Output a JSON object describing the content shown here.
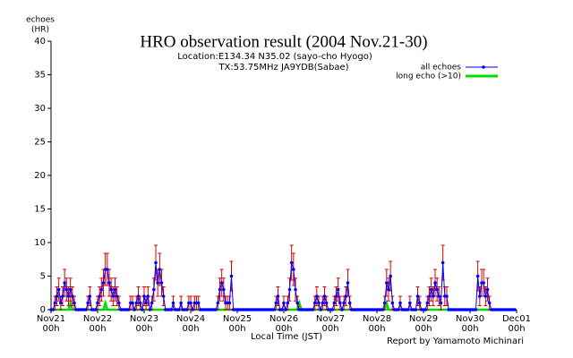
{
  "chart_data": {
    "type": "line",
    "title": "HRO observation result (2004 Nov.21-30)",
    "subtitle": [
      "Location:E134.34 N35.02 (sayo-cho Hyogo)",
      "TX:53.75MHz JA9YDB(Sabae)"
    ],
    "y_label": [
      "echoes",
      "(HR)"
    ],
    "x_label": "Local Time (JST)",
    "annotation": "Report by Yamamoto Michinari",
    "legend": "upper right",
    "xlim": [
      0,
      240
    ],
    "xticks": [
      {
        "value": 0,
        "label": "Nov21\n00h"
      },
      {
        "value": 24,
        "label": "Nov22\n00h"
      },
      {
        "value": 48,
        "label": "Nov23\n00h"
      },
      {
        "value": 72,
        "label": "Nov24\n00h"
      },
      {
        "value": 96,
        "label": "Nov25\n00h"
      },
      {
        "value": 120,
        "label": "Nov26\n00h"
      },
      {
        "value": 144,
        "label": "Nov27\n00h"
      },
      {
        "value": 168,
        "label": "Nov28\n00h"
      },
      {
        "value": 192,
        "label": "Nov29\n00h"
      },
      {
        "value": 216,
        "label": "Nov30\n00h"
      },
      {
        "value": 240,
        "label": "Dec01\n00h"
      }
    ],
    "ylim": [
      0,
      40
    ],
    "yticks": [
      0,
      5,
      10,
      15,
      20,
      25,
      30,
      35,
      40
    ],
    "x": [
      0,
      1,
      2,
      3,
      4,
      5,
      6,
      7,
      8,
      9,
      10,
      11,
      12,
      13,
      14,
      15,
      16,
      17,
      18,
      19,
      20,
      21,
      22,
      23,
      24,
      25,
      26,
      27,
      28,
      29,
      30,
      31,
      32,
      33,
      34,
      35,
      36,
      37,
      38,
      39,
      40,
      41,
      42,
      43,
      44,
      45,
      46,
      47,
      48,
      49,
      50,
      51,
      52,
      53,
      54,
      55,
      56,
      57,
      58,
      59,
      60,
      61,
      62,
      63,
      64,
      65,
      66,
      67,
      68,
      69,
      70,
      71,
      72,
      73,
      74,
      75,
      76,
      77,
      78,
      79,
      80,
      81,
      82,
      83,
      84,
      85,
      86,
      87,
      88,
      89,
      90,
      91,
      92,
      93,
      94,
      95,
      96,
      97,
      98,
      99,
      100,
      101,
      102,
      103,
      104,
      105,
      106,
      107,
      108,
      109,
      110,
      111,
      112,
      113,
      114,
      115,
      116,
      117,
      118,
      119,
      120,
      121,
      122,
      123,
      124,
      125,
      126,
      127,
      128,
      129,
      130,
      131,
      132,
      133,
      134,
      135,
      136,
      137,
      138,
      139,
      140,
      141,
      142,
      143,
      144,
      145,
      146,
      147,
      148,
      149,
      150,
      151,
      152,
      153,
      154,
      155,
      156,
      157,
      158,
      159,
      160,
      161,
      162,
      163,
      164,
      165,
      166,
      167,
      168,
      169,
      170,
      171,
      172,
      173,
      174,
      175,
      176,
      177,
      178,
      179,
      180,
      181,
      182,
      183,
      184,
      185,
      186,
      187,
      188,
      189,
      190,
      191,
      192,
      193,
      194,
      195,
      196,
      197,
      198,
      199,
      200,
      201,
      202,
      203,
      204,
      205,
      206,
      207,
      208,
      209,
      210,
      211,
      212,
      213,
      214,
      215,
      216,
      217,
      218,
      219,
      220,
      221,
      222,
      223,
      224,
      225,
      226,
      227,
      228,
      229,
      230,
      231,
      232,
      233,
      234,
      235,
      236,
      237,
      238,
      239
    ],
    "series": [
      {
        "name": "all echoes",
        "color": "#0000ff",
        "error_color": "#dd0000",
        "values": [
          0,
          0,
          1,
          2,
          3,
          1,
          2,
          4,
          3,
          2,
          3,
          2,
          1,
          0,
          0,
          0,
          0,
          0,
          0,
          1,
          2,
          0,
          0,
          0,
          1,
          2,
          3,
          4,
          6,
          6,
          4,
          3,
          2,
          3,
          2,
          1,
          0,
          0,
          0,
          0,
          0,
          1,
          1,
          0,
          1,
          2,
          1,
          0,
          2,
          1,
          2,
          0,
          1,
          3,
          7,
          4,
          6,
          4,
          2,
          0,
          0,
          0,
          0,
          1,
          0,
          0,
          0,
          1,
          0,
          0,
          0,
          1,
          1,
          0,
          1,
          1,
          1,
          0,
          0,
          0,
          0,
          0,
          0,
          0,
          0,
          0,
          1,
          3,
          4,
          3,
          1,
          1,
          1,
          5,
          0,
          0,
          0,
          0,
          0,
          0,
          0,
          0,
          0,
          0,
          0,
          0,
          0,
          0,
          0,
          0,
          0,
          0,
          0,
          0,
          0,
          0,
          1,
          2,
          0,
          0,
          1,
          0,
          1,
          3,
          7,
          6,
          3,
          1,
          0,
          0,
          0,
          0,
          0,
          0,
          0,
          0,
          1,
          2,
          1,
          0,
          1,
          2,
          1,
          0,
          0,
          0,
          1,
          2,
          3,
          1,
          0,
          1,
          2,
          4,
          1,
          0,
          0,
          0,
          0,
          0,
          0,
          0,
          0,
          0,
          0,
          0,
          0,
          0,
          0,
          0,
          0,
          0,
          1,
          4,
          3,
          5,
          1,
          0,
          0,
          0,
          1,
          0,
          0,
          0,
          0,
          1,
          0,
          0,
          0,
          2,
          1,
          0,
          0,
          0,
          1,
          2,
          3,
          2,
          4,
          3,
          2,
          1,
          7,
          2,
          2,
          0,
          0,
          0,
          0,
          0,
          0,
          0,
          0,
          0,
          0,
          0,
          0,
          0,
          0,
          0,
          5,
          2,
          4,
          4,
          2,
          3,
          1,
          0,
          0,
          0,
          0,
          0,
          0,
          0,
          0,
          0,
          0,
          0,
          0,
          0
        ],
        "errors": [
          0,
          0,
          1,
          1.4,
          1.7,
          1,
          1.4,
          2,
          1.7,
          1.4,
          1.7,
          1.4,
          1,
          0,
          0,
          0,
          0,
          0,
          0,
          1,
          1.4,
          0,
          0,
          0,
          1,
          1.4,
          1.7,
          2,
          2.4,
          2.4,
          2,
          1.7,
          1.4,
          1.7,
          1.4,
          1,
          0,
          0,
          0,
          0,
          0,
          1,
          1,
          0,
          1,
          1.4,
          1,
          0,
          1.4,
          1,
          1.4,
          0,
          1,
          1.7,
          2.6,
          2,
          2.4,
          2,
          1.4,
          0,
          0,
          0,
          0,
          1,
          0,
          0,
          0,
          1,
          0,
          0,
          0,
          1,
          1,
          0,
          1,
          1,
          1,
          0,
          0,
          0,
          0,
          0,
          0,
          0,
          0,
          0,
          1,
          1.7,
          2,
          1.7,
          1,
          1,
          1,
          2.2,
          0,
          0,
          0,
          0,
          0,
          0,
          0,
          0,
          0,
          0,
          0,
          0,
          0,
          0,
          0,
          0,
          0,
          0,
          0,
          0,
          0,
          0,
          1,
          1.4,
          0,
          0,
          1,
          0,
          1,
          1.7,
          2.6,
          2.4,
          1.7,
          1,
          0,
          0,
          0,
          0,
          0,
          0,
          0,
          0,
          1,
          1.4,
          1,
          0,
          1,
          1.4,
          1,
          0,
          0,
          0,
          1,
          1.4,
          1.7,
          1,
          0,
          1,
          1.4,
          2,
          1,
          0,
          0,
          0,
          0,
          0,
          0,
          0,
          0,
          0,
          0,
          0,
          0,
          0,
          0,
          0,
          0,
          0,
          1,
          2,
          1.7,
          2.2,
          1,
          0,
          0,
          0,
          1,
          0,
          0,
          0,
          0,
          1,
          0,
          0,
          0,
          1.4,
          1,
          0,
          0,
          0,
          1,
          1.4,
          1.7,
          1.4,
          2,
          1.7,
          1.4,
          1,
          2.6,
          1.4,
          1.4,
          0,
          0,
          0,
          0,
          0,
          0,
          0,
          0,
          0,
          0,
          0,
          0,
          0,
          0,
          0,
          2.2,
          1.4,
          2,
          2,
          1.4,
          1.7,
          1,
          0,
          0,
          0,
          0,
          0,
          0,
          0,
          0,
          0,
          0,
          0,
          0,
          0
        ]
      },
      {
        "name": "long echo (>10)",
        "color": "#00dd00",
        "values": [
          0,
          0,
          0,
          0,
          0,
          0,
          0,
          0,
          0,
          0,
          1,
          0,
          0,
          0,
          0,
          0,
          0,
          0,
          0,
          0,
          0,
          0,
          0,
          0,
          0,
          0,
          0,
          0,
          1,
          0,
          0,
          0,
          0,
          0,
          0,
          0,
          0,
          0,
          0,
          0,
          0,
          0,
          0,
          0,
          0,
          0,
          0,
          0,
          0,
          0,
          0,
          0,
          0,
          0,
          0,
          0,
          0,
          0,
          0,
          0,
          0,
          0,
          0,
          0,
          0,
          0,
          0,
          0,
          0,
          0,
          0,
          0,
          0,
          0,
          0,
          0,
          0,
          0,
          0,
          0,
          0,
          0,
          0,
          0,
          0,
          0,
          0,
          0,
          0,
          0,
          0,
          0,
          0,
          0,
          0,
          0,
          0,
          0,
          0,
          0,
          0,
          0,
          0,
          0,
          0,
          0,
          0,
          0,
          0,
          0,
          0,
          0,
          0,
          0,
          0,
          0,
          0,
          0,
          0,
          0,
          0,
          0,
          0,
          0,
          0,
          0,
          0,
          0,
          1,
          0,
          0,
          0,
          0,
          0,
          0,
          0,
          0,
          0,
          0,
          0,
          0,
          0,
          0,
          0,
          0,
          0,
          0,
          0,
          0,
          0,
          0,
          0,
          0,
          0,
          0,
          0,
          0,
          0,
          0,
          0,
          0,
          0,
          0,
          0,
          0,
          0,
          0,
          0,
          0,
          0,
          0,
          0,
          0,
          1,
          0,
          0,
          0,
          0,
          0,
          0,
          0,
          0,
          0,
          0,
          0,
          0,
          0,
          0,
          0,
          0,
          0,
          0,
          0,
          0,
          0,
          0,
          0,
          0,
          0,
          0,
          0,
          0,
          0,
          0,
          0,
          0,
          0,
          0,
          0,
          0,
          0,
          0,
          0,
          0,
          0,
          0,
          0,
          0,
          0,
          0,
          0,
          0,
          0,
          0,
          0,
          0,
          0,
          0,
          0,
          0,
          0,
          0,
          0,
          0,
          0,
          0,
          0,
          0,
          0,
          0
        ]
      }
    ]
  }
}
